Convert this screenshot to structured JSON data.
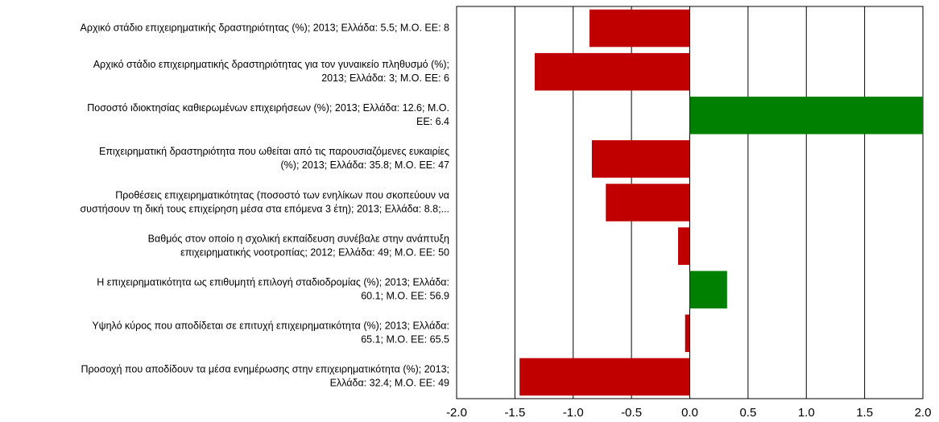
{
  "chart_data": {
    "type": "barh",
    "categories": [
      [
        "Αρχικό στάδιο επιχειρηματικής δραστηριότητας (%); 2013; Ελλάδα: 5.5; Μ.Ο. ΕΕ: 8"
      ],
      [
        "Αρχικό στάδιο επιχειρηματικής δραστηριότητας για τον γυναικείο πληθυσμό (%);",
        "2013; Ελλάδα: 3; Μ.Ο. ΕΕ: 6"
      ],
      [
        "Ποσοστό ιδιοκτησίας καθιερωμένων επιχειρήσεων (%); 2013; Ελλάδα: 12.6; Μ.Ο.",
        "ΕΕ: 6.4"
      ],
      [
        "Επιχειρηματική δραστηριότητα που ωθείται από τις παρουσιαζόμενες ευκαιρίες",
        "(%); 2013; Ελλάδα: 35.8; Μ.Ο. ΕΕ: 47"
      ],
      [
        "Προθέσεις επιχειρηματικότητας (ποσοστό των ενηλίκων που σκοπεύουν να",
        "συστήσουν τη δική τους επιχείρηση μέσα στα επόμενα 3 έτη); 2013; Ελλάδα: 8.8;..."
      ],
      [
        "Βαθμός στον οποίο η σχολική εκπαίδευση συνέβαλε στην ανάπτυξη",
        "επιχειρηματικής νοοτροπίας; 2012; Ελλάδα: 49; Μ.Ο. ΕΕ: 50"
      ],
      [
        "Η επιχειρηματικότητα ως επιθυμητή επιλογή σταδιοδρομίας (%); 2013; Ελλάδα:",
        "60.1; Μ.Ο. ΕΕ: 56.9"
      ],
      [
        "Υψηλό κύρος που αποδίδεται σε επιτυχή επιχειρηματικότητα (%); 2013; Ελλάδα:",
        "65.1; Μ.Ο. ΕΕ: 65.5"
      ],
      [
        "Προσοχή που αποδίδουν τα μέσα ενημέρωσης στην επιχειρηματικότητα (%); 2013;",
        "Ελλάδα: 32.4; Μ.Ο. ΕΕ: 49"
      ]
    ],
    "values": [
      -0.86,
      -1.33,
      2.0,
      -0.84,
      -0.72,
      -0.1,
      0.32,
      -0.04,
      -1.46
    ],
    "colors": [
      "#c00000",
      "#c00000",
      "#008000",
      "#c00000",
      "#c00000",
      "#c00000",
      "#008000",
      "#c00000",
      "#c00000"
    ],
    "xlim": [
      -2.0,
      2.0
    ],
    "xticks": [
      {
        "value": -2.0,
        "label": "-2.0"
      },
      {
        "value": -1.5,
        "label": "-1.5"
      },
      {
        "value": -1.0,
        "label": "-1.0"
      },
      {
        "value": -0.5,
        "label": "-0.5"
      },
      {
        "value": 0.0,
        "label": "0.0"
      },
      {
        "value": 0.5,
        "label": "0.5"
      },
      {
        "value": 1.0,
        "label": "1.0"
      },
      {
        "value": 1.5,
        "label": "1.5"
      },
      {
        "value": 2.0,
        "label": "2.0"
      }
    ],
    "grid": true
  }
}
